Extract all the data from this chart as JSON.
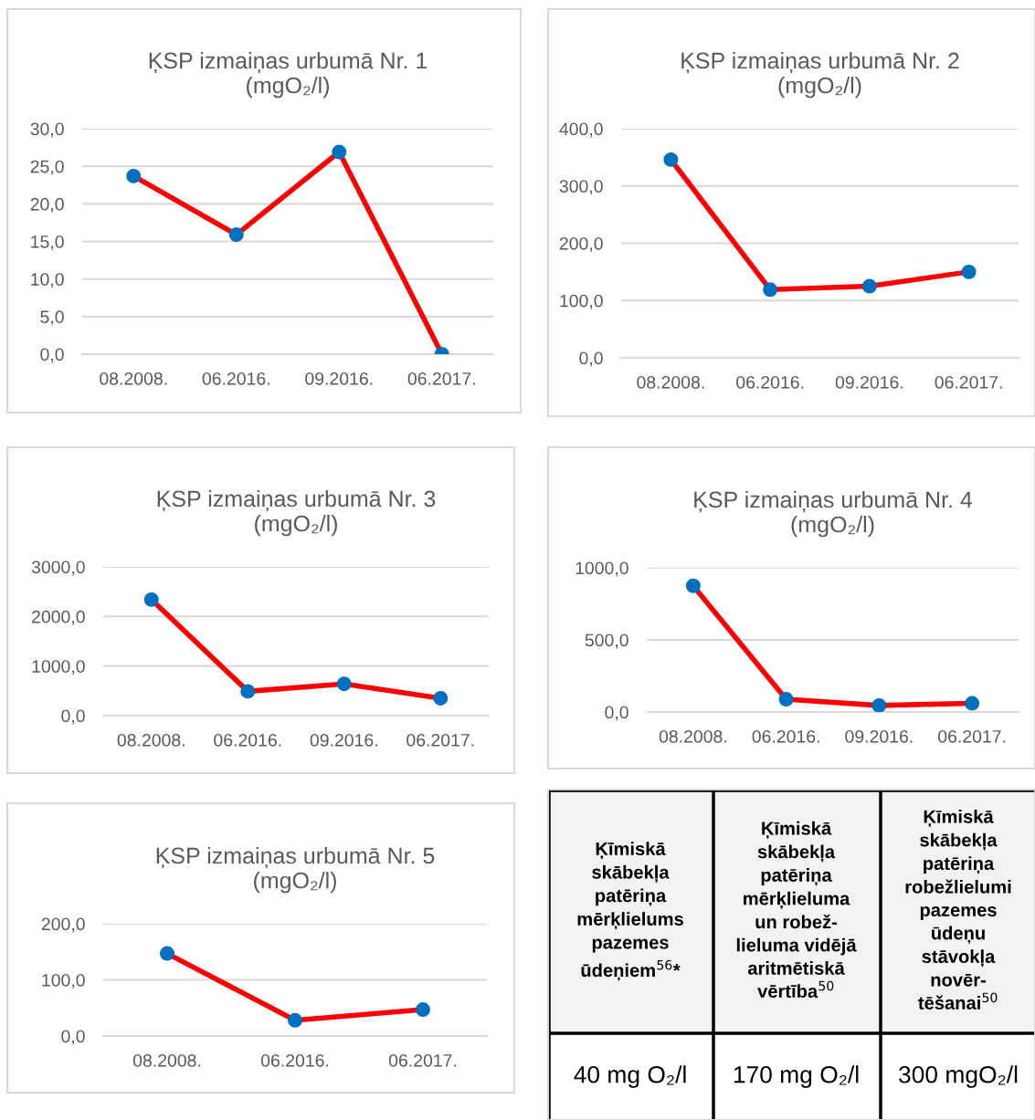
{
  "chart_data": [
    {
      "type": "line",
      "title": "ĶSP izmaiņas urbumā Nr. 1\n(mgO₂/l)",
      "categories": [
        "08.2008.",
        "06.2016.",
        "09.2016.",
        "06.2017."
      ],
      "ylim": [
        0,
        30
      ],
      "yticks": [
        {
          "value": 0,
          "label": "0,0"
        },
        {
          "value": 5,
          "label": "5,0"
        },
        {
          "value": 10,
          "label": "10,0"
        },
        {
          "value": 15,
          "label": "15,0"
        },
        {
          "value": 20,
          "label": "20,0"
        },
        {
          "value": 25,
          "label": "25,0"
        },
        {
          "value": 30,
          "label": "30,0"
        }
      ],
      "grid": "y",
      "marker": "circle",
      "series": [
        {
          "color": "#ff0000",
          "colors": [
            "#0070c0",
            "#0070c0",
            "#0070c0",
            "#0070c0"
          ],
          "values": [
            23.7,
            15.9,
            26.9,
            0
          ]
        }
      ]
    },
    {
      "type": "line",
      "title": "ĶSP izmaiņas urbumā Nr. 2\n(mgO₂/l)",
      "categories": [
        "08.2008.",
        "06.2016.",
        "09.2016.",
        "06.2017."
      ],
      "ylim": [
        0,
        400
      ],
      "yticks": [
        {
          "value": 0,
          "label": "0,0"
        },
        {
          "value": 100,
          "label": "100,0"
        },
        {
          "value": 200,
          "label": "200,0"
        },
        {
          "value": 300,
          "label": "300,0"
        },
        {
          "value": 400,
          "label": "400,0"
        }
      ],
      "grid": "y",
      "marker": "circle",
      "series": [
        {
          "color": "#ff0000",
          "colors": [
            "#0070c0",
            "#0070c0",
            "#0070c0",
            "#0070c0"
          ],
          "values": [
            346,
            119,
            125,
            150
          ]
        }
      ]
    },
    {
      "type": "line",
      "title": "ĶSP izmaiņas urbumā Nr. 3\n(mgO₂/l)",
      "categories": [
        "08.2008.",
        "06.2016.",
        "09.2016.",
        "06.2017."
      ],
      "ylim": [
        0,
        3000
      ],
      "yticks": [
        {
          "value": 0,
          "label": "0,0"
        },
        {
          "value": 1000,
          "label": "1000,0"
        },
        {
          "value": 2000,
          "label": "2000,0"
        },
        {
          "value": 3000,
          "label": "3000,0"
        }
      ],
      "grid": "y",
      "marker": "circle",
      "series": [
        {
          "color": "#ff0000",
          "colors": [
            "#0070c0",
            "#0070c0",
            "#0070c0",
            "#0070c0"
          ],
          "values": [
            2340,
            490,
            640,
            350
          ]
        }
      ]
    },
    {
      "type": "line",
      "title": "ĶSP izmaiņas urbumā Nr. 4\n(mgO₂/l)",
      "categories": [
        "08.2008.",
        "06.2016.",
        "09.2016.",
        "06.2017."
      ],
      "ylim": [
        0,
        1000
      ],
      "yticks": [
        {
          "value": 0,
          "label": "0,0"
        },
        {
          "value": 500,
          "label": "500,0"
        },
        {
          "value": 1000,
          "label": "1000,0"
        }
      ],
      "grid": "y",
      "marker": "circle",
      "series": [
        {
          "color": "#ff0000",
          "colors": [
            "#0070c0",
            "#0070c0",
            "#0070c0",
            "#0070c0"
          ],
          "values": [
            875,
            88,
            45,
            60
          ]
        }
      ]
    },
    {
      "type": "line",
      "title": "ĶSP izmaiņas urbumā Nr. 5\n(mgO₂/l)",
      "categories": [
        "08.2008.",
        "06.2016.",
        "06.2017."
      ],
      "ylim": [
        0,
        200
      ],
      "yticks": [
        {
          "value": 0,
          "label": "0,0"
        },
        {
          "value": 100,
          "label": "100,0"
        },
        {
          "value": 200,
          "label": "200,0"
        }
      ],
      "grid": "y",
      "marker": "circle",
      "series": [
        {
          "color": "#ff0000",
          "colors": [
            "#0070c0",
            "#0070c0",
            "#0070c0"
          ],
          "values": [
            147,
            28,
            47
          ]
        }
      ]
    },
    {
      "type": "other",
      "annotations": [
        "Ķīmiskā\nskābekļa\npatēriņa\nmērķlielums\npazemes\nūdeņiem$^{56}$*",
        "Ķīmiskā\nskābekļa\npatēriņa\nmērķlieluma\nun robež-\nlieluma vidējā\naritmētiskā\nvērtība$^{50}$",
        "Ķīmiskā\nskābekļa\npatēriņa\nrobežlielumi\npazemes\nūdeņu\nstāvokļa\nnovēr-\ntēšanai$^{50}$",
        "40 mg O₂/l",
        "170 mg O₂/l",
        "300 mgO₂/l"
      ]
    }
  ]
}
